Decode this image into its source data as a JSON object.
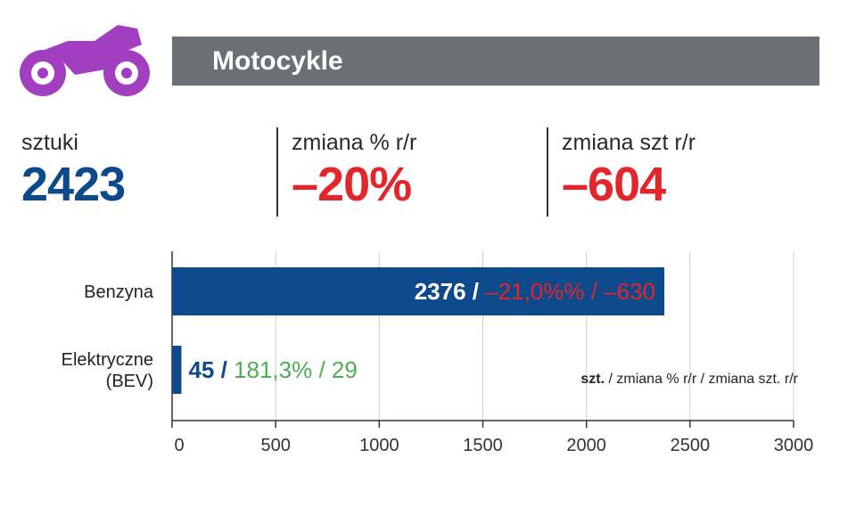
{
  "header": {
    "title": "Motocykle",
    "icon": "motorcycle-icon",
    "icon_color": "#a23fc0",
    "bar_color": "#6b7075"
  },
  "stats": {
    "units": {
      "label": "sztuki",
      "value": "2423",
      "color": "#0d4a8c"
    },
    "pct_change": {
      "label": "zmiana % r/r",
      "value": "–20%",
      "color": "#e3262c"
    },
    "unit_change": {
      "label": "zmiana szt r/r",
      "value": "–604",
      "color": "#e3262c"
    }
  },
  "chart_data": {
    "type": "bar",
    "orientation": "horizontal",
    "categories": [
      "Benzyna",
      "Elektryczne\n(BEV)"
    ],
    "values": [
      2376,
      45
    ],
    "xlim": [
      0,
      3000
    ],
    "ticks": [
      0,
      500,
      1000,
      1500,
      2000,
      2500,
      3000
    ],
    "grid": true,
    "bar_color": "#0d4a8c",
    "annotations": [
      {
        "value": "2376",
        "sep": " / ",
        "pct": "–21,0%%",
        "sep2": " / ",
        "diff": "–630",
        "value_color": "#ffffff",
        "change_color": "#e3262c",
        "placement": "inside-end"
      },
      {
        "value": "45",
        "sep": " / ",
        "pct": "181,3%",
        "sep2": " / ",
        "diff": "29",
        "value_color": "#0d4a8c",
        "change_color": "#4caf50",
        "placement": "outside"
      }
    ],
    "legend_note": {
      "bold": "szt.",
      "rest": " / zmiana % r/r / zmiana szt. r/r"
    }
  }
}
